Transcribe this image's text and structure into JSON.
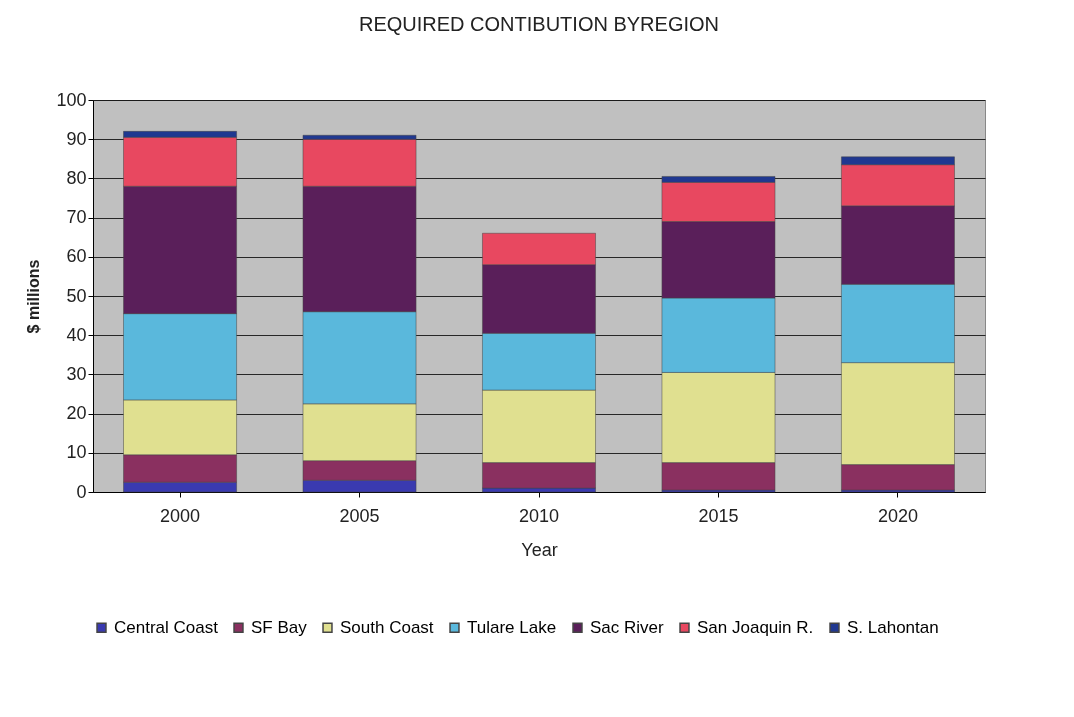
{
  "chart_data": {
    "type": "bar",
    "title": "REQUIRED CONTIBUTION BYREGION",
    "xlabel": "Year",
    "ylabel": "$ millions",
    "categories": [
      "2000",
      "2005",
      "2010",
      "2015",
      "2020"
    ],
    "stacked": true,
    "ylim": [
      0,
      100
    ],
    "yticks": [
      0,
      10,
      20,
      30,
      40,
      50,
      60,
      70,
      80,
      90,
      100
    ],
    "grid": "y",
    "legend": "bottom",
    "series": [
      {
        "name": "Central Coast",
        "color": "#3a3ab0",
        "values": [
          2.5,
          3,
          1,
          0.5,
          0.5
        ]
      },
      {
        "name": "SF Bay",
        "color": "#8a3060",
        "values": [
          7,
          5,
          6.5,
          7,
          6.5
        ]
      },
      {
        "name": "South Coast",
        "color": "#e0e090",
        "values": [
          14,
          14.5,
          18.5,
          23,
          26
        ]
      },
      {
        "name": "Tulare Lake",
        "color": "#5ab8dc",
        "values": [
          22,
          23.5,
          14.5,
          19,
          20
        ]
      },
      {
        "name": "Sac River",
        "color": "#5a1f5a",
        "values": [
          32.5,
          32,
          17.5,
          19.5,
          20
        ]
      },
      {
        "name": "San Joaquin R.",
        "color": "#e84860",
        "values": [
          12.5,
          12,
          8,
          10,
          10.5
        ]
      },
      {
        "name": "S. Lahontan",
        "color": "#203890",
        "values": [
          1.5,
          1,
          null,
          1.5,
          2
        ]
      }
    ]
  }
}
